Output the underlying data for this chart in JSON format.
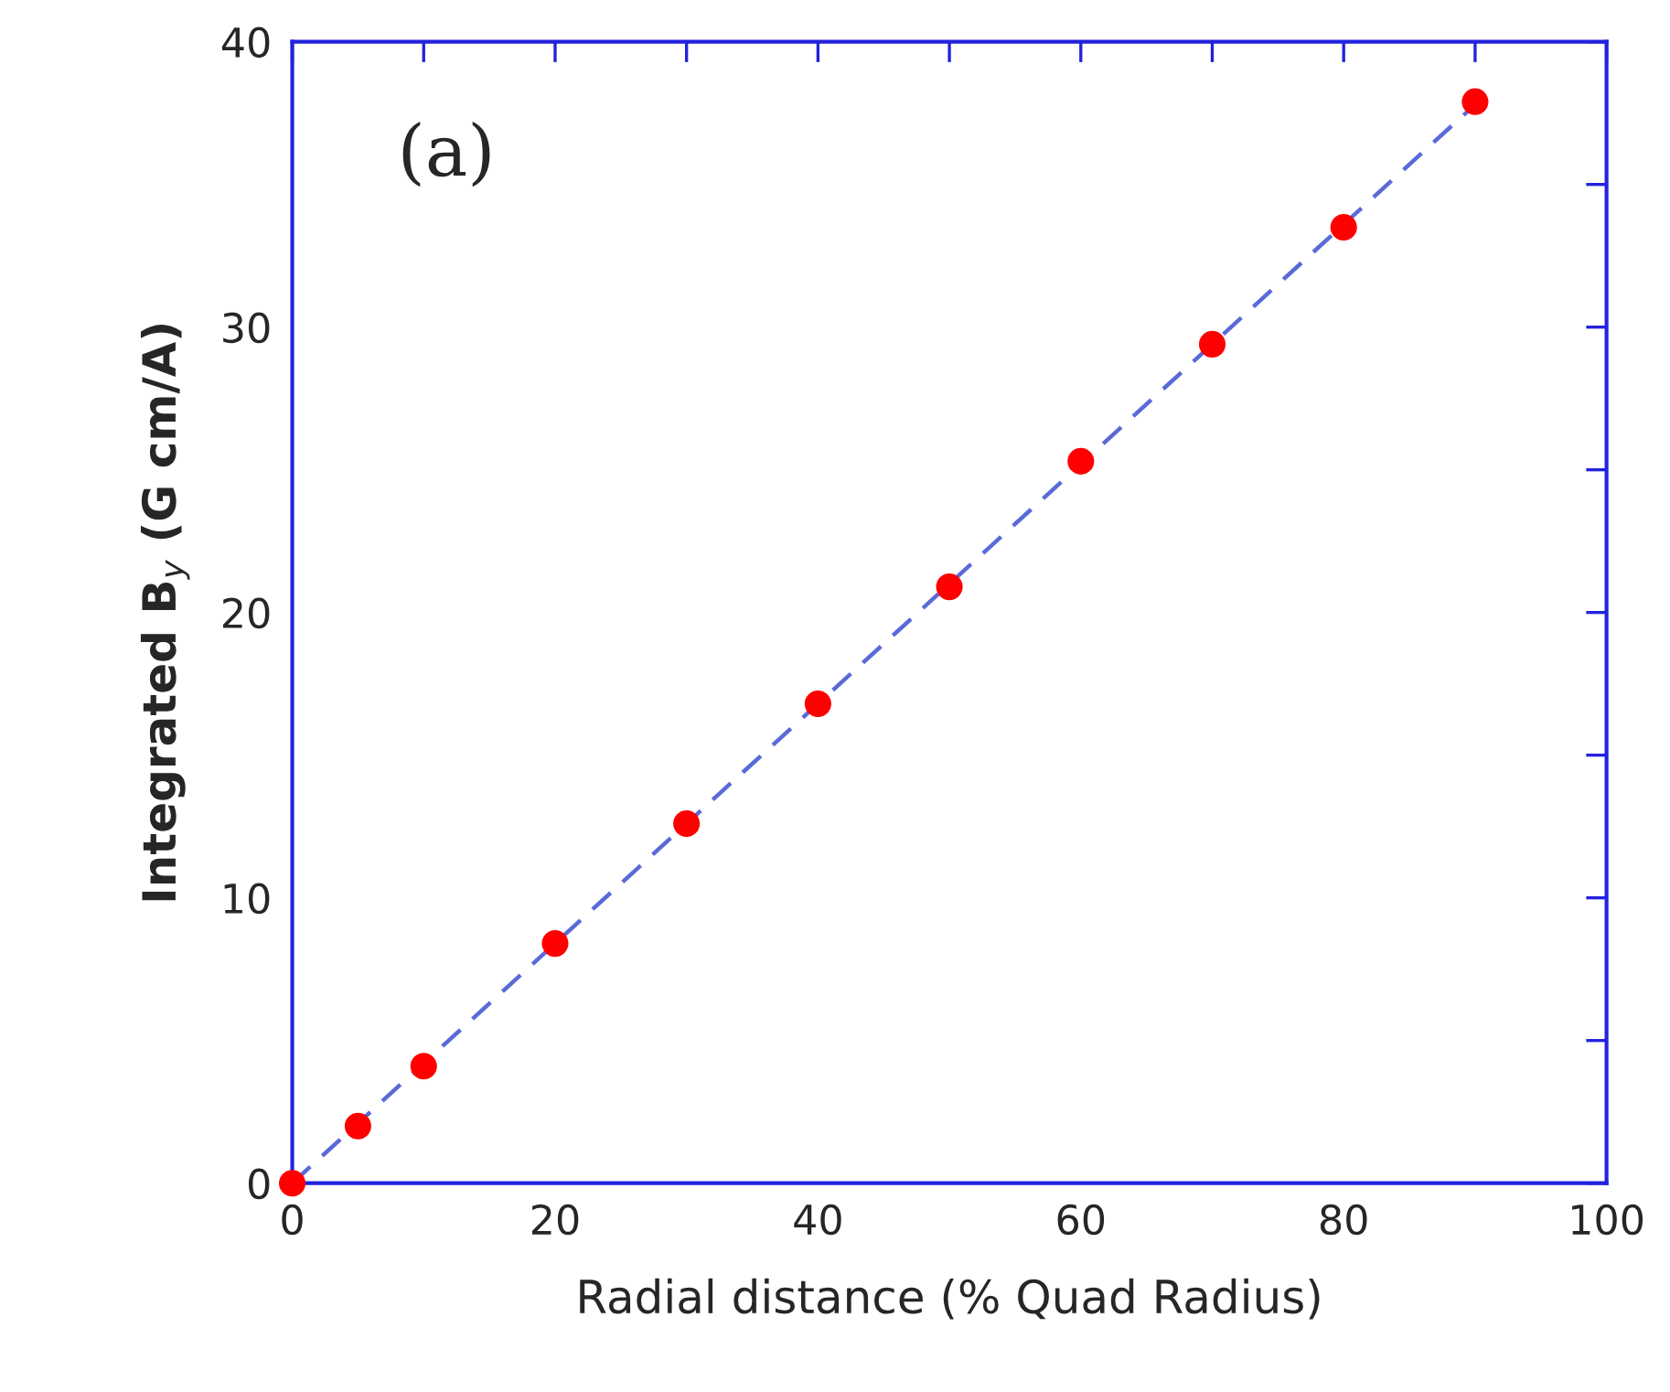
{
  "chart_data": {
    "type": "scatter",
    "xlabel": "Radial distance (% Quad Radius)",
    "ylabel": "Integrated B$_{y}$ (G cm/A)",
    "annotations": [
      "(a)"
    ],
    "xlim": [
      0,
      100
    ],
    "ylim": [
      0,
      40
    ],
    "xticks": [
      0,
      {
        "value": 10,
        "label": null
      },
      20,
      {
        "value": 30,
        "label": null
      },
      40,
      {
        "value": 50,
        "label": null
      },
      60,
      {
        "value": 70,
        "label": null
      },
      80,
      {
        "value": 90,
        "label": null
      },
      100
    ],
    "yticks": [
      0,
      {
        "value": 5,
        "label": null
      },
      10,
      {
        "value": 15,
        "label": null
      },
      20,
      {
        "value": 25,
        "label": null
      },
      30,
      {
        "value": 35,
        "label": null
      },
      40
    ],
    "grid": false,
    "legend": false,
    "series": [
      {
        "type": "line",
        "color": "#5a6ad8",
        "line_style": "dashed",
        "marker": "none",
        "x": [
          0,
          90
        ],
        "values": [
          0,
          37.8
        ]
      },
      {
        "color": "#ff0000",
        "marker": "circle",
        "x": [
          0,
          5,
          10,
          20,
          30,
          40,
          50,
          60,
          70,
          80,
          90
        ],
        "values": [
          0,
          2.0,
          4.1,
          8.4,
          12.6,
          16.8,
          20.9,
          25.3,
          29.4,
          33.5,
          37.9
        ]
      }
    ]
  }
}
